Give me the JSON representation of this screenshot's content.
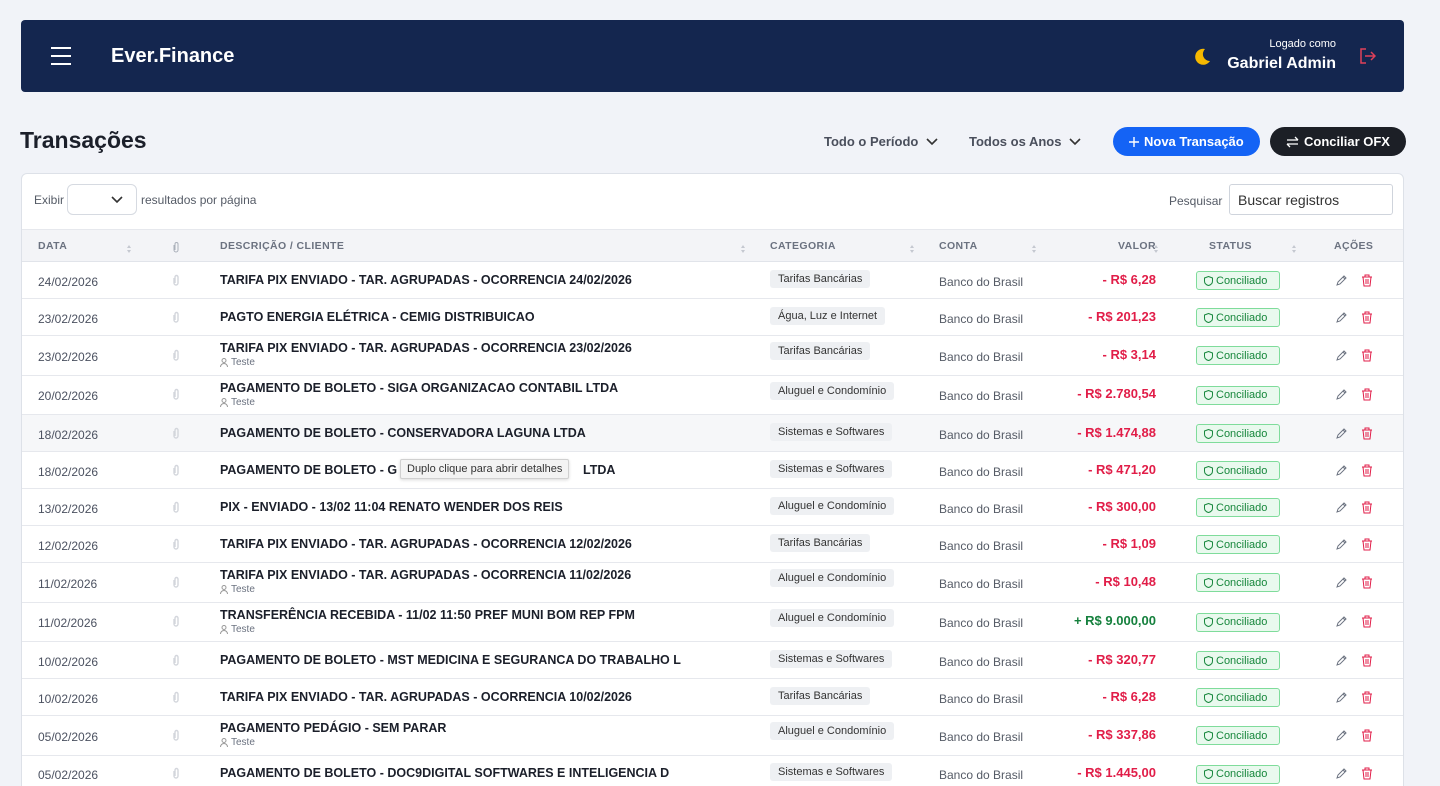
{
  "header": {
    "brand": "Ever.Finance",
    "logged_label": "Logado como",
    "user": "Gabriel Admin"
  },
  "page": {
    "title": "Transações",
    "period_filter": "Todo o Período",
    "year_filter": "Todos os Anos",
    "new_button": "Nova Transação",
    "ofx_button": "Conciliar OFX"
  },
  "controls": {
    "show_label": "Exibir",
    "per_page_label": "resultados por página",
    "search_label": "Pesquisar",
    "search_placeholder": "Buscar registros"
  },
  "table": {
    "columns": [
      "DATA",
      "DESCRIÇÃO / CLIENTE",
      "CATEGORIA",
      "CONTA",
      "VALOR",
      "STATUS",
      "AÇÕES"
    ],
    "rows": [
      {
        "date": "24/02/2026",
        "description": "TARIFA PIX ENVIADO - TAR. AGRUPADAS - OCORRENCIA 24/02/2026",
        "category": "Tarifas Bancárias",
        "account": "Banco do Brasil",
        "value": "- R$ 6,28",
        "status": "Conciliado"
      },
      {
        "date": "23/02/2026",
        "description": "PAGTO ENERGIA ELÉTRICA - CEMIG DISTRIBUICAO",
        "category": "Água, Luz e Internet",
        "account": "Banco do Brasil",
        "value": "- R$ 201,23",
        "status": "Conciliado"
      },
      {
        "date": "23/02/2026",
        "description": "TARIFA PIX ENVIADO - TAR. AGRUPADAS - OCORRENCIA 23/02/2026",
        "client": "Teste",
        "category": "Tarifas Bancárias",
        "account": "Banco do Brasil",
        "value": "- R$ 3,14",
        "status": "Conciliado"
      },
      {
        "date": "20/02/2026",
        "description": "PAGAMENTO DE BOLETO - SIGA ORGANIZACAO CONTABIL LTDA",
        "client": "Teste",
        "category": "Aluguel e Condomínio",
        "account": "Banco do Brasil",
        "value": "- R$ 2.780,54",
        "status": "Conciliado"
      },
      {
        "date": "18/02/2026",
        "description": "PAGAMENTO DE BOLETO - CONSERVADORA LAGUNA LTDA",
        "category": "Sistemas e Softwares",
        "account": "Banco do Brasil",
        "value": "- R$ 1.474,88",
        "status": "Conciliado"
      },
      {
        "date": "18/02/2026",
        "description": "PAGAMENTO DE BOLETO - G",
        "description_tail": "LTDA",
        "tooltip": "Duplo clique para abrir detalhes",
        "category": "Sistemas e Softwares",
        "account": "Banco do Brasil",
        "value": "- R$ 471,20",
        "status": "Conciliado"
      },
      {
        "date": "13/02/2026",
        "description": "PIX - ENVIADO - 13/02 11:04 RENATO WENDER DOS REIS",
        "category": "Aluguel e Condomínio",
        "account": "Banco do Brasil",
        "value": "- R$ 300,00",
        "status": "Conciliado"
      },
      {
        "date": "12/02/2026",
        "description": "TARIFA PIX ENVIADO - TAR. AGRUPADAS - OCORRENCIA 12/02/2026",
        "category": "Tarifas Bancárias",
        "account": "Banco do Brasil",
        "value": "- R$ 1,09",
        "status": "Conciliado"
      },
      {
        "date": "11/02/2026",
        "description": "TARIFA PIX ENVIADO - TAR. AGRUPADAS - OCORRENCIA 11/02/2026",
        "client": "Teste",
        "category": "Aluguel e Condomínio",
        "account": "Banco do Brasil",
        "value": "- R$ 10,48",
        "status": "Conciliado"
      },
      {
        "date": "11/02/2026",
        "description": "TRANSFERÊNCIA RECEBIDA - 11/02 11:50 PREF MUNI BOM REP FPM",
        "client": "Teste",
        "category": "Aluguel e Condomínio",
        "account": "Banco do Brasil",
        "value": "+ R$ 9.000,00",
        "status": "Conciliado"
      },
      {
        "date": "10/02/2026",
        "description": "PAGAMENTO DE BOLETO - MST MEDICINA E SEGURANCA DO TRABALHO L",
        "category": "Sistemas e Softwares",
        "account": "Banco do Brasil",
        "value": "- R$ 320,77",
        "status": "Conciliado"
      },
      {
        "date": "10/02/2026",
        "description": "TARIFA PIX ENVIADO - TAR. AGRUPADAS - OCORRENCIA 10/02/2026",
        "category": "Tarifas Bancárias",
        "account": "Banco do Brasil",
        "value": "- R$ 6,28",
        "status": "Conciliado"
      },
      {
        "date": "05/02/2026",
        "description": "PAGAMENTO PEDÁGIO - SEM PARAR",
        "client": "Teste",
        "category": "Aluguel e Condomínio",
        "account": "Banco do Brasil",
        "value": "- R$ 337,86",
        "status": "Conciliado"
      },
      {
        "date": "05/02/2026",
        "description": "PAGAMENTO DE BOLETO - DOC9DIGITAL SOFTWARES E INTELIGENCIA D",
        "category": "Sistemas e Softwares",
        "account": "Banco do Brasil",
        "value": "- R$ 1.445,00",
        "status": "Conciliado"
      }
    ]
  }
}
